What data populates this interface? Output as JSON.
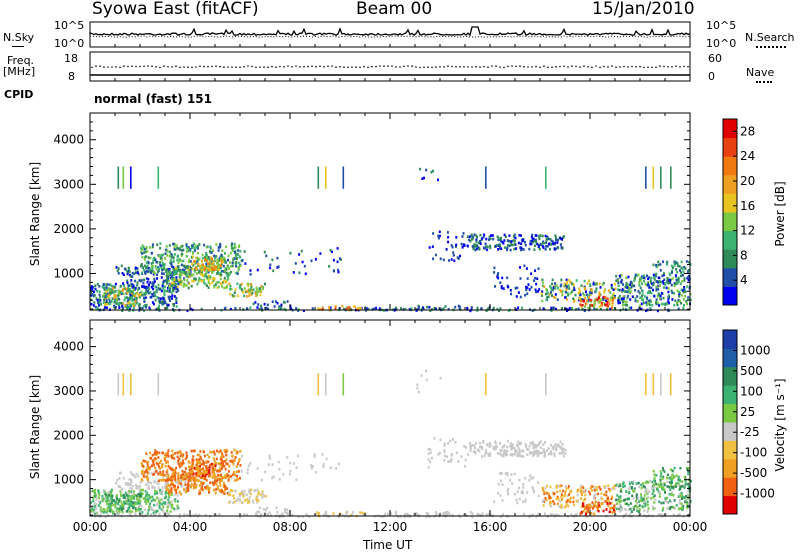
{
  "header": {
    "title": "Syowa East (fitACF)",
    "beam": "Beam 00",
    "date": "15/Jan/2010"
  },
  "top_panels": {
    "nsky_label": "N.Sky",
    "nsearch_label": "N.Search",
    "nsky_ticks": [
      "10^5",
      "10^0"
    ],
    "nsearch_ticks": [
      "10^5",
      "10^0"
    ],
    "freq_label_1": "Freq.",
    "freq_label_2": "[MHz]",
    "freq_ticks": [
      "18",
      "8"
    ],
    "nave_label": "Nave",
    "nave_ticks": [
      "60",
      "0"
    ],
    "cpid_label": "CPID",
    "cpid_value": "normal (fast) 151"
  },
  "colors": {
    "power_scale": [
      "#0000ee",
      "#1f4fa8",
      "#2e8b57",
      "#3cb371",
      "#7ac943",
      "#e8c420",
      "#f0a020",
      "#f07a10",
      "#e84010",
      "#e00000"
    ],
    "velocity_scale": [
      "#1f3fa8",
      "#1f5fa8",
      "#2e8b57",
      "#3cb371",
      "#7ac943",
      "#c8c8c8",
      "#f0c040",
      "#f0a020",
      "#f06010",
      "#e00000"
    ]
  },
  "chart_data": [
    {
      "type": "heatmap",
      "name": "power",
      "xlabel": "",
      "ylabel": "Slant Range [km]",
      "x_ticks": [
        "00:00",
        "04:00",
        "08:00",
        "12:00",
        "16:00",
        "20:00",
        "00:00"
      ],
      "xlim": [
        0,
        24
      ],
      "ylim": [
        180,
        4600
      ],
      "y_ticks": [
        1000,
        2000,
        3000,
        4000
      ],
      "colorbar_label": "Power [dB]",
      "colorbar_ticks": [
        4,
        8,
        12,
        16,
        20,
        24,
        28
      ],
      "colorbar_range": [
        0,
        30
      ]
    },
    {
      "type": "heatmap",
      "name": "velocity",
      "xlabel": "Time UT",
      "ylabel": "Slant Range [km]",
      "x_ticks": [
        "00:00",
        "04:00",
        "08:00",
        "12:00",
        "16:00",
        "20:00",
        "00:00"
      ],
      "xlim": [
        0,
        24
      ],
      "ylim": [
        180,
        4600
      ],
      "y_ticks": [
        1000,
        2000,
        3000,
        4000
      ],
      "colorbar_label": "Velocity [m s⁻¹]",
      "colorbar_ticks": [
        "1000",
        "500",
        "100",
        "25",
        "-25",
        "-100",
        "-500",
        "-1000"
      ]
    }
  ]
}
